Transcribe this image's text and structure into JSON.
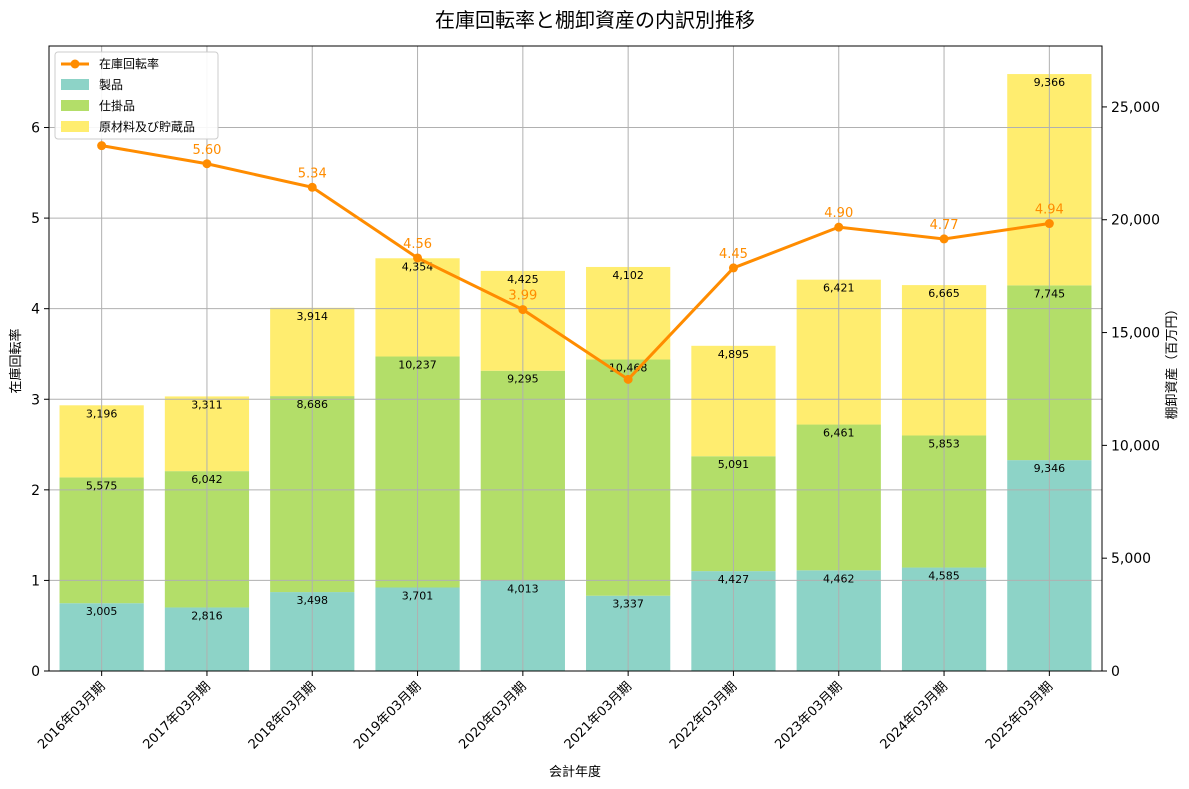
{
  "chart_data": {
    "type": "bar",
    "title": "在庫回転率と棚卸資産の内訳別推移",
    "xlabel": "会計年度",
    "ylabel_left": "在庫回転率",
    "ylabel_right": "棚卸資産（百万円）",
    "categories": [
      "2016年03月期",
      "2017年03月期",
      "2018年03月期",
      "2019年03月期",
      "2020年03月期",
      "2021年03月期",
      "2022年03月期",
      "2023年03月期",
      "2024年03月期",
      "2025年03月期"
    ],
    "ylim_left": [
      0,
      6.9
    ],
    "ylim_right": [
      0,
      27700
    ],
    "yticks_left": [
      0,
      1,
      2,
      3,
      4,
      5,
      6
    ],
    "yticks_right": [
      0,
      5000,
      10000,
      15000,
      20000,
      25000
    ],
    "ytick_labels_right": [
      "0",
      "5,000",
      "10,000",
      "15,000",
      "20,000",
      "25,000"
    ],
    "grid": true,
    "legend_position": "top-left",
    "series": [
      {
        "name": "製品",
        "color": "#8dd3c7",
        "values": [
          3005,
          2816,
          3498,
          3701,
          4013,
          3337,
          4427,
          4462,
          4585,
          9346
        ],
        "labels": [
          "3,005",
          "2,816",
          "3,498",
          "3,701",
          "4,013",
          "3,337",
          "4,427",
          "4,462",
          "4,585",
          "9,346"
        ]
      },
      {
        "name": "仕掛品",
        "color": "#b3de69",
        "values": [
          5575,
          6042,
          8686,
          10237,
          9295,
          10468,
          5091,
          6461,
          5853,
          7745
        ],
        "labels": [
          "5,575",
          "6,042",
          "8,686",
          "10,237",
          "9,295",
          "10,468",
          "5,091",
          "6,461",
          "5,853",
          "7,745"
        ]
      },
      {
        "name": "原材料及び貯蔵品",
        "color": "#ffed6f",
        "values": [
          3196,
          3311,
          3914,
          4354,
          4425,
          4102,
          4895,
          6421,
          6665,
          9366
        ],
        "labels": [
          "3,196",
          "3,311",
          "3,914",
          "4,354",
          "4,425",
          "4,102",
          "4,895",
          "6,421",
          "6,665",
          "9,366"
        ]
      }
    ],
    "line": {
      "name": "在庫回転率",
      "color": "#ff8c00",
      "values": [
        5.8,
        5.6,
        5.34,
        4.56,
        3.99,
        3.22,
        4.45,
        4.9,
        4.77,
        4.94
      ],
      "labels": [
        "",
        "5.60",
        "5.34",
        "4.56",
        "3.99",
        "",
        "4.45",
        "4.90",
        "4.77",
        "4.94"
      ]
    }
  }
}
